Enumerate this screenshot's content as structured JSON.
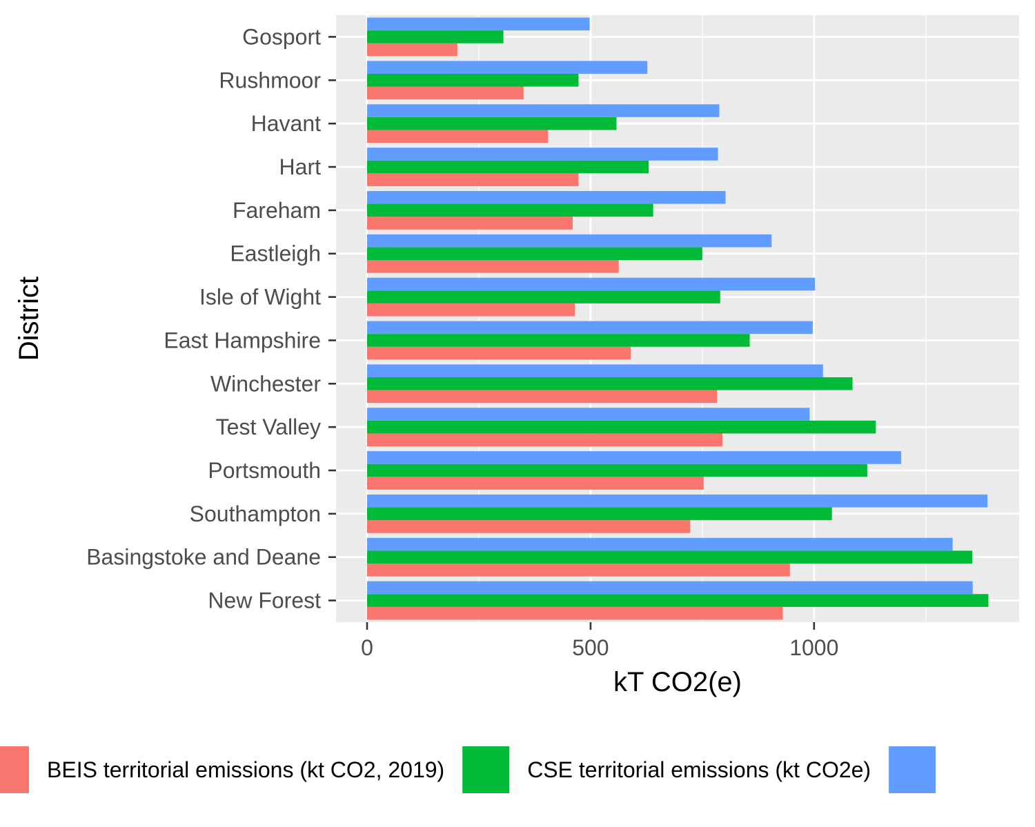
{
  "chart_data": {
    "type": "bar",
    "orientation": "horizontal",
    "xlabel": "kT CO2(e)",
    "ylabel": "District",
    "xlim": [
      -70,
      1400
    ],
    "xticks": [
      0,
      500,
      1000
    ],
    "grid": true,
    "legend_position": "bottom",
    "categories": [
      "Gosport",
      "Rushmoor",
      "Havant",
      "Hart",
      "Fareham",
      "Eastleigh",
      "Isle of Wight",
      "East Hampshire",
      "Winchester",
      "Test Valley",
      "Portsmouth",
      "Southampton",
      "Basingstoke and Deane",
      "New Forest"
    ],
    "series": [
      {
        "name": "BEIS territorial emissions (kt CO2, 2019)",
        "color": "#F8766D",
        "values": [
          202,
          350,
          405,
          473,
          460,
          563,
          465,
          590,
          783,
          795,
          753,
          723,
          946,
          930
        ]
      },
      {
        "name": "CSE territorial emissions (kt CO2e)",
        "color": "#00BA38",
        "values": [
          305,
          473,
          558,
          630,
          640,
          750,
          790,
          856,
          1086,
          1138,
          1119,
          1040,
          1354,
          1390
        ]
      },
      {
        "name": "",
        "color": "#619CFF",
        "values": [
          498,
          627,
          788,
          785,
          802,
          905,
          1002,
          997,
          1020,
          990,
          1195,
          1388,
          1310,
          1355
        ]
      }
    ]
  }
}
